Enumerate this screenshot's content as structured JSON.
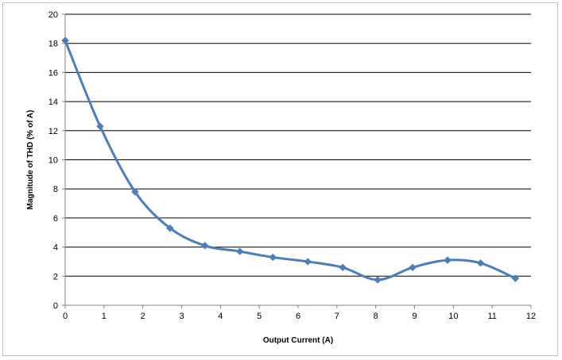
{
  "chart_data": {
    "type": "line",
    "title": "",
    "xlabel": "Output Current (A)",
    "ylabel": "Magnitude of THD (% of A)",
    "xlim": [
      0,
      12
    ],
    "ylim": [
      0,
      20
    ],
    "x_ticks": [
      0,
      1,
      2,
      3,
      4,
      5,
      6,
      7,
      8,
      9,
      10,
      11,
      12
    ],
    "y_ticks": [
      0,
      2,
      4,
      6,
      8,
      10,
      12,
      14,
      16,
      18,
      20
    ],
    "grid": "horizontal",
    "legend": "none",
    "series": [
      {
        "color": "#4a7ebb",
        "marker": "diamond",
        "smooth": true,
        "x": [
          0,
          0.9,
          1.8,
          2.7,
          3.6,
          4.5,
          5.35,
          6.25,
          7.15,
          8.05,
          8.95,
          9.85,
          10.7,
          11.6
        ],
        "y": [
          18.2,
          12.3,
          7.8,
          5.3,
          4.1,
          3.7,
          3.3,
          3.0,
          2.6,
          1.75,
          2.6,
          3.1,
          2.9,
          1.85
        ]
      }
    ]
  }
}
